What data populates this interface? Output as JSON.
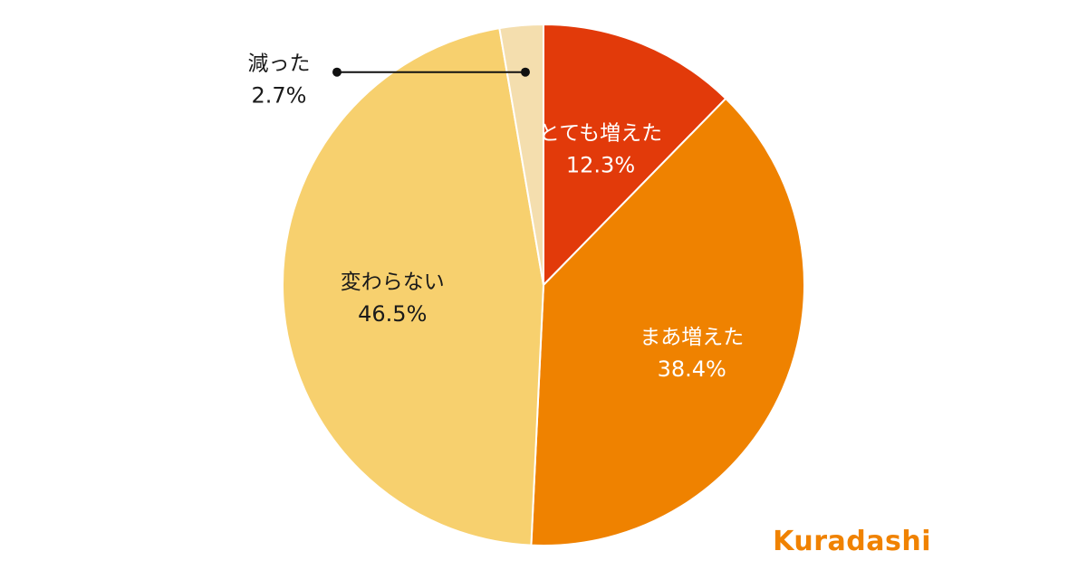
{
  "chart_data": {
    "type": "pie",
    "slices": [
      {
        "label": "とても増えた",
        "value": 12.3,
        "value_label": "12.3%",
        "color": "#e23a0a"
      },
      {
        "label": "まあ増えた",
        "value": 38.4,
        "value_label": "38.4%",
        "color": "#ef8200"
      },
      {
        "label": "変わらない",
        "value": 46.5,
        "value_label": "46.5%",
        "color": "#f7d06e"
      },
      {
        "label": "減った",
        "value": 2.7,
        "value_label": "2.7%",
        "color": "#f4deae"
      }
    ],
    "start_angle": "12 o'clock",
    "direction": "clockwise",
    "legend": "none"
  },
  "brand": {
    "logo_text": "Kuradashi",
    "logo_color": "#f08200"
  }
}
